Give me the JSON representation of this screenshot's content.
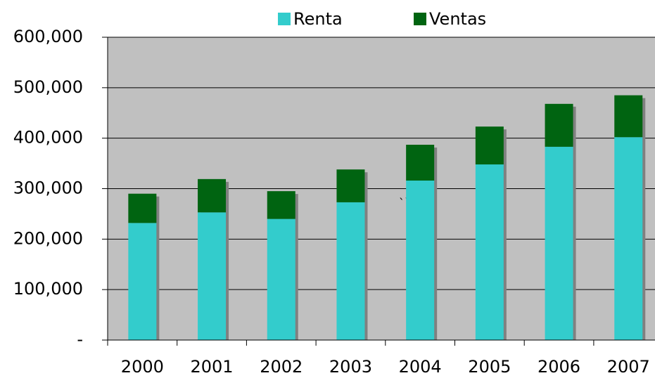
{
  "chart_data": {
    "type": "stacked-bar",
    "categories": [
      "2000",
      "2001",
      "2002",
      "2003",
      "2004",
      "2005",
      "2006",
      "2007"
    ],
    "series": [
      {
        "name": "Renta",
        "color": "#33cccc",
        "values": [
          232000,
          253000,
          240000,
          273000,
          316000,
          348000,
          383000,
          402000
        ]
      },
      {
        "name": "Ventas",
        "color": "#006411",
        "values": [
          58000,
          66000,
          55000,
          65000,
          71000,
          75000,
          85000,
          83000
        ]
      }
    ],
    "ylim": [
      0,
      600000
    ],
    "yticks": [
      {
        "value": 0,
        "label": "-"
      },
      {
        "value": 100000,
        "label": "100,000"
      },
      {
        "value": 200000,
        "label": "200,000"
      },
      {
        "value": 300000,
        "label": "300,000"
      },
      {
        "value": 400000,
        "label": "400,000"
      },
      {
        "value": 500000,
        "label": "500,000"
      },
      {
        "value": 600000,
        "label": "600,000"
      }
    ],
    "grid": true,
    "annotation": "``"
  }
}
